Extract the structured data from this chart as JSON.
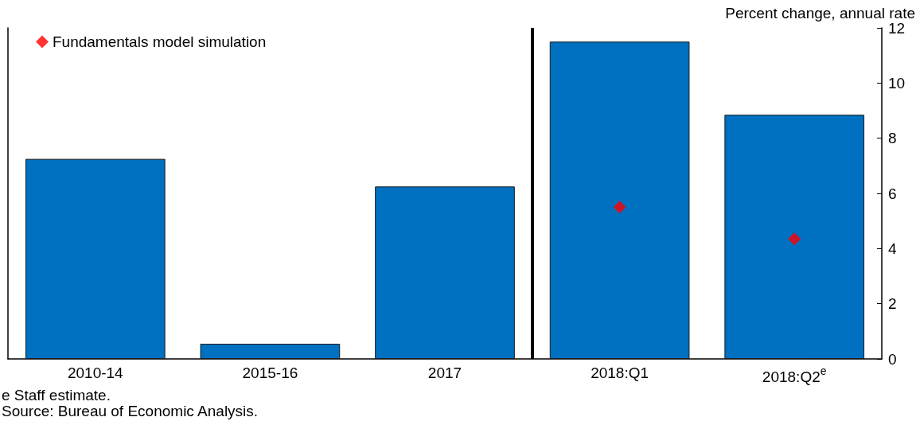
{
  "chart_data": {
    "type": "bar",
    "ylabel": "Percent change, annual rate",
    "categories": [
      "2010-14",
      "2015-16",
      "2017",
      "2018:Q1",
      "2018:Q2$^{e}$"
    ],
    "series": [
      {
        "color": "#0070c0",
        "values": [
          7.25,
          0.55,
          6.25,
          11.5,
          8.85
        ]
      },
      {
        "type": "scatter",
        "name": "Fundamentals model simulation",
        "color": "#ff0000",
        "marker": "diamond",
        "x": [
          "2018:Q1",
          "2018:Q2$^{e}$"
        ],
        "values": [
          5.5,
          4.35
        ]
      }
    ],
    "ylim": [
      0,
      12
    ],
    "yticks": [
      0,
      2,
      4,
      6,
      8,
      10,
      12
    ],
    "grid": false,
    "legend": "top left",
    "annotations": [
      "e Staff estimate.",
      "Source: Bureau of Economic Analysis."
    ]
  }
}
